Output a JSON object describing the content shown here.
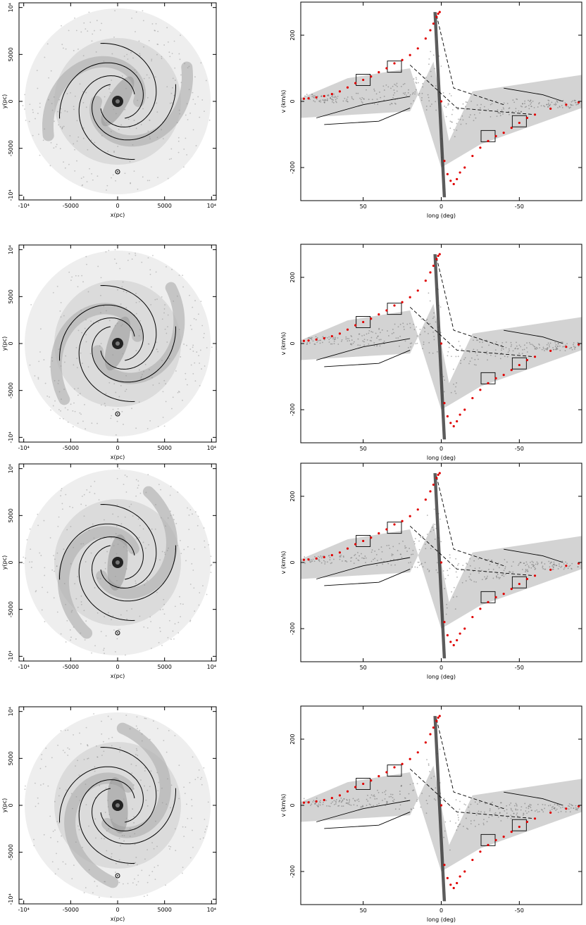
{
  "chart_data": [
    {
      "type": "scatter",
      "title": "",
      "xlabel": "x(pc)",
      "ylabel": "y(pc)",
      "xlim": [
        -10500,
        10500
      ],
      "ylim": [
        -10500,
        10500
      ],
      "x_ticks": [
        "-10⁴",
        "-5000",
        "0",
        "5000",
        "10⁴"
      ],
      "y_ticks": [
        "-10⁴",
        "-5000",
        "0",
        "5000",
        "10⁴"
      ],
      "x_tick_values": [
        -10000,
        -5000,
        0,
        5000,
        10000
      ],
      "y_tick_values": [
        -10000,
        -5000,
        0,
        5000,
        10000
      ],
      "sun_position": [
        0,
        -7500
      ],
      "spiral_arms_overlay": true,
      "grid": false,
      "legend": "none"
    },
    {
      "type": "scatter",
      "title": "",
      "xlabel": "long (deg)",
      "ylabel": "v (km/s)",
      "xlim": [
        90,
        -90
      ],
      "ylim": [
        -300,
        300
      ],
      "x_ticks": [
        "50",
        "0",
        "-50"
      ],
      "y_ticks": [
        "-200",
        "0",
        "200"
      ],
      "x_tick_values": [
        50,
        0,
        -50
      ],
      "y_tick_values": [
        -200,
        0,
        200
      ],
      "observed_terminal_velocity": {
        "color": "#e00000",
        "x": [
          88,
          85,
          80,
          75,
          70,
          65,
          60,
          55,
          50,
          45,
          40,
          35,
          30,
          25,
          20,
          15,
          10,
          7,
          5,
          3,
          2,
          1,
          0,
          -2,
          -4,
          -6,
          -8,
          -10,
          -12,
          -15,
          -20,
          -25,
          -30,
          -35,
          -40,
          -45,
          -50,
          -55,
          -60,
          -70,
          -80,
          -88
        ],
        "y": [
          8,
          9,
          12,
          16,
          22,
          30,
          42,
          55,
          65,
          75,
          88,
          100,
          115,
          125,
          140,
          160,
          190,
          215,
          235,
          255,
          265,
          270,
          0,
          -180,
          -220,
          -240,
          -250,
          -235,
          -215,
          -200,
          -165,
          -140,
          -120,
          -105,
          -95,
          -80,
          -65,
          -50,
          -40,
          -22,
          -10,
          -3
        ]
      },
      "grid": false,
      "legend": "none"
    }
  ],
  "panels": [
    {
      "left_axis": {},
      "right_axis": {}
    },
    {
      "left_axis": {},
      "right_axis": {}
    },
    {
      "left_axis": {},
      "right_axis": {}
    },
    {
      "left_axis": {},
      "right_axis": {}
    }
  ]
}
